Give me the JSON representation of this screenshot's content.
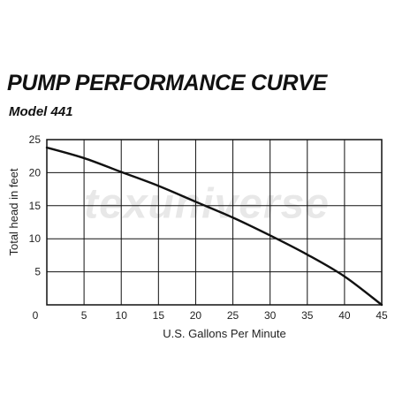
{
  "chart_data": {
    "type": "line",
    "title": "PUMP PERFORMANCE CURVE",
    "subtitle": "Model 441",
    "xlabel": "U.S. Gallons Per Minute",
    "ylabel": "Total head in feet",
    "xlim": [
      0,
      45
    ],
    "ylim": [
      0,
      25
    ],
    "x_ticks": [
      0,
      5,
      10,
      15,
      20,
      25,
      30,
      35,
      40,
      45
    ],
    "y_ticks": [
      0,
      5,
      10,
      15,
      20,
      25
    ],
    "grid": true,
    "watermark": "texuniverse",
    "colors": {
      "line": "#111111",
      "grid": "#111111",
      "watermark": "#d6d6d6"
    },
    "series": [
      {
        "x": [
          0,
          5,
          10,
          15,
          20,
          25,
          30,
          35,
          40,
          45
        ],
        "values": [
          23.8,
          22.2,
          20.1,
          18.0,
          15.6,
          13.2,
          10.5,
          7.6,
          4.3,
          0
        ]
      }
    ]
  }
}
